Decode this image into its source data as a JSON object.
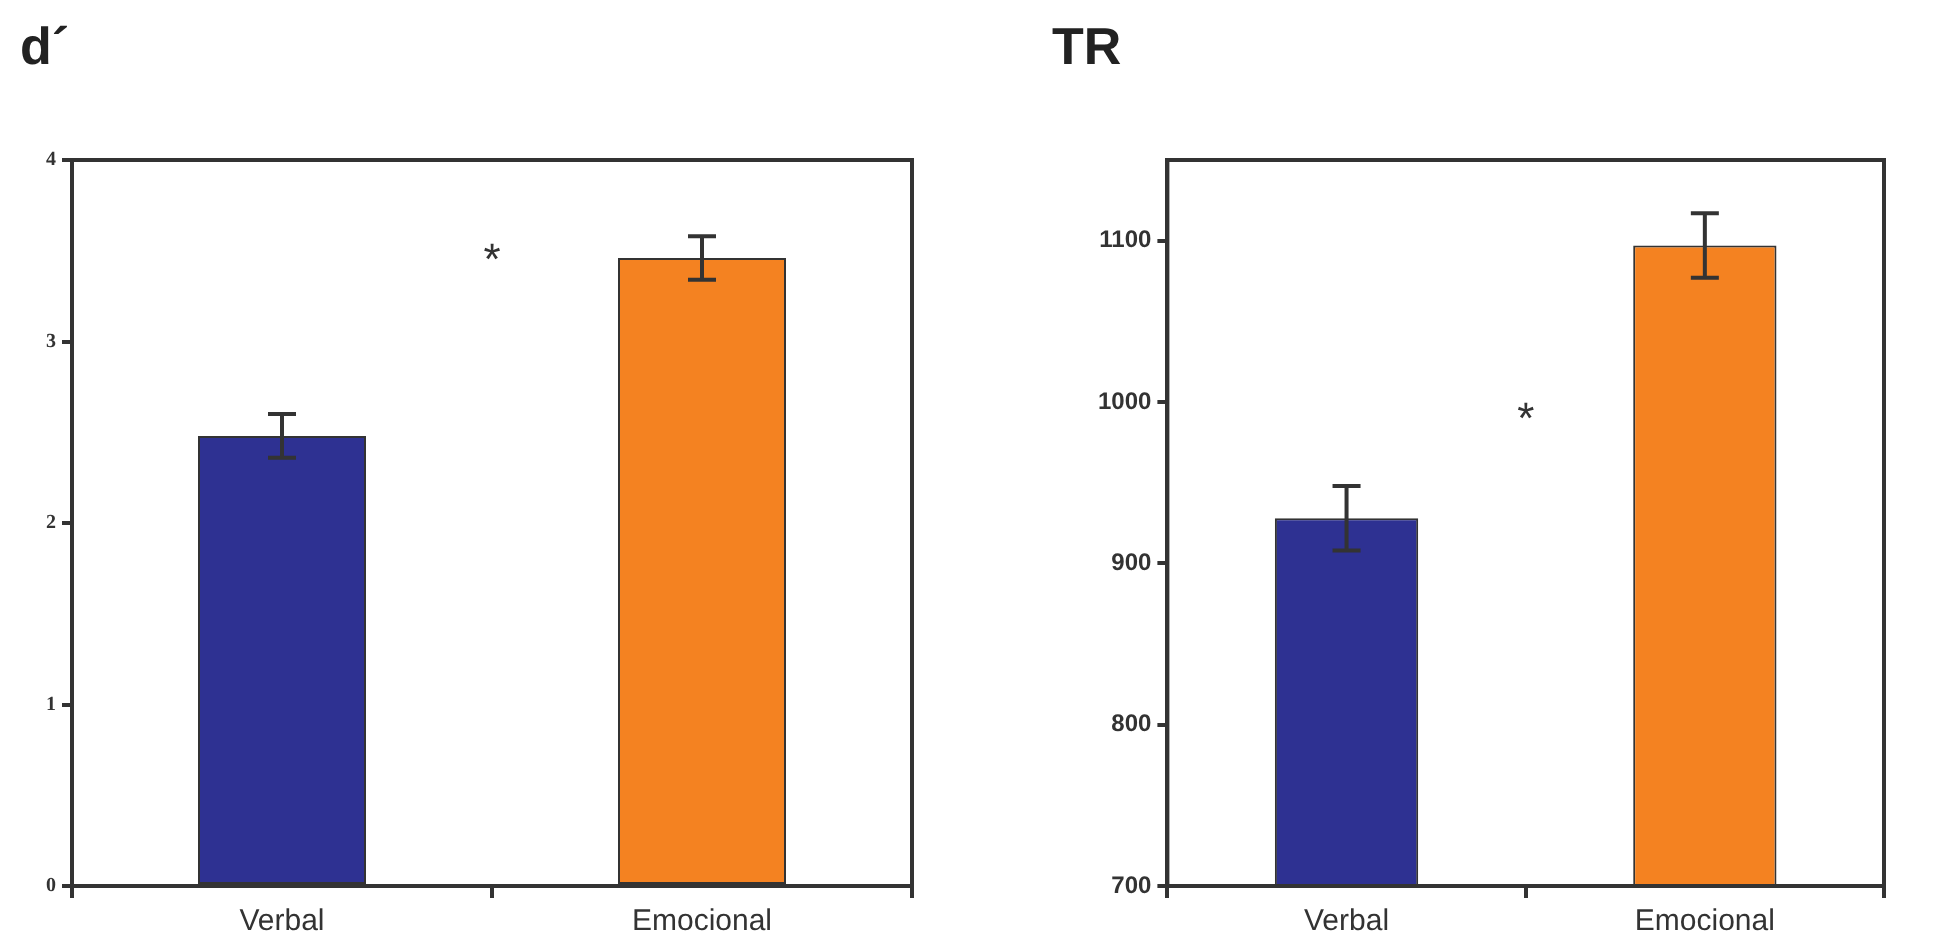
{
  "chart_data": [
    {
      "type": "bar",
      "title": "d´",
      "categories": [
        "Verbal",
        "Emocional"
      ],
      "values": [
        2.48,
        3.46
      ],
      "colors": [
        "#2e3192",
        "#f48221"
      ],
      "errors": [
        0.12,
        0.12
      ],
      "ylim": [
        0,
        4
      ],
      "yticks": [
        0,
        1,
        2,
        3,
        4
      ],
      "grid": false,
      "legend": false,
      "annotations": [
        "*"
      ]
    },
    {
      "type": "bar",
      "title": "TR",
      "categories": [
        "Verbal",
        "Emocional"
      ],
      "values": [
        928,
        1097
      ],
      "colors": [
        "#2e3192",
        "#f48221"
      ],
      "errors": [
        20,
        20
      ],
      "ylim": [
        700,
        1150
      ],
      "yticks": [
        700,
        800,
        900,
        1000,
        1100
      ],
      "grid": false,
      "legend": false,
      "annotations": [
        "*"
      ]
    }
  ]
}
